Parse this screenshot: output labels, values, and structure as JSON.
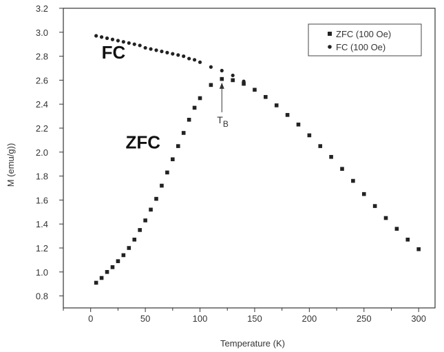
{
  "chart_data": {
    "type": "scatter",
    "title": "",
    "xlabel": "Temperature (K)",
    "ylabel": "M (emu/g))",
    "xlim": [
      -25,
      315
    ],
    "ylim": [
      0.7,
      3.2
    ],
    "xticks": [
      0,
      50,
      100,
      150,
      200,
      250,
      300
    ],
    "yticks": [
      0.8,
      1.0,
      1.2,
      1.4,
      1.6,
      1.8,
      2.0,
      2.2,
      2.4,
      2.6,
      2.8,
      3.0,
      3.2
    ],
    "xtick_labels": [
      "0",
      "50",
      "100",
      "150",
      "200",
      "250",
      "300"
    ],
    "ytick_labels": [
      "0.8",
      "1.0",
      "1.2",
      "1.4",
      "1.6",
      "1.8",
      "2.0",
      "2.2",
      "2.4",
      "2.6",
      "2.8",
      "3.0",
      "3.2"
    ],
    "grid": false,
    "legend": "top-right",
    "series": [
      {
        "name": "ZFC (100 Oe)",
        "marker": "square",
        "color": "#222222",
        "x": [
          5,
          10,
          15,
          20,
          25,
          30,
          35,
          40,
          45,
          50,
          55,
          60,
          65,
          70,
          75,
          80,
          85,
          90,
          95,
          100,
          110,
          120,
          130,
          140,
          150,
          160,
          170,
          180,
          190,
          200,
          210,
          220,
          230,
          240,
          250,
          260,
          270,
          280,
          290,
          300
        ],
        "y": [
          0.91,
          0.95,
          1.0,
          1.04,
          1.09,
          1.14,
          1.2,
          1.27,
          1.35,
          1.43,
          1.52,
          1.61,
          1.72,
          1.83,
          1.94,
          2.05,
          2.16,
          2.27,
          2.37,
          2.45,
          2.56,
          2.61,
          2.6,
          2.57,
          2.52,
          2.46,
          2.39,
          2.31,
          2.23,
          2.14,
          2.05,
          1.96,
          1.86,
          1.76,
          1.65,
          1.55,
          1.45,
          1.36,
          1.27,
          1.19
        ]
      },
      {
        "name": "FC (100 Oe)",
        "marker": "diamond",
        "color": "#222222",
        "x": [
          5,
          10,
          15,
          20,
          25,
          30,
          35,
          40,
          45,
          50,
          55,
          60,
          65,
          70,
          75,
          80,
          85,
          90,
          95,
          100,
          110,
          120,
          130,
          140
        ],
        "y": [
          2.97,
          2.96,
          2.95,
          2.94,
          2.93,
          2.92,
          2.91,
          2.9,
          2.89,
          2.87,
          2.86,
          2.85,
          2.84,
          2.83,
          2.82,
          2.81,
          2.8,
          2.78,
          2.77,
          2.75,
          2.71,
          2.68,
          2.64,
          2.59
        ]
      }
    ],
    "annotations": [
      {
        "text": "FC",
        "x": 10,
        "y": 2.78
      },
      {
        "text": "ZFC",
        "x": 32,
        "y": 2.03
      },
      {
        "text": "T",
        "subscript": "B",
        "x": 120,
        "y": 2.24,
        "arrow_to_y": 2.58
      }
    ]
  }
}
